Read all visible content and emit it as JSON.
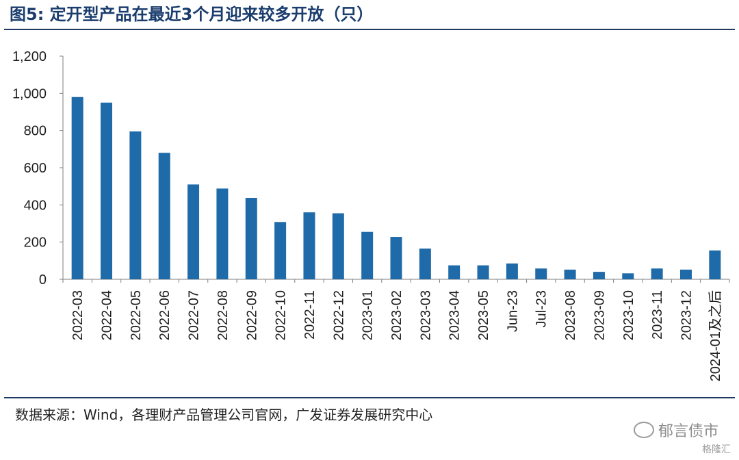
{
  "title": "图5:  定开型产品在最近3个月迎来较多开放（只）",
  "source": "数据来源：Wind，各理财产品管理公司官网，广发证券发展研究中心",
  "watermark": "郁言债市",
  "logo_text": "格隆汇",
  "chart_data": {
    "type": "bar",
    "categories": [
      "2022-03",
      "2022-04",
      "2022-05",
      "2022-06",
      "2022-07",
      "2022-08",
      "2022-09",
      "2022-10",
      "2022-11",
      "2022-12",
      "2023-01",
      "2023-02",
      "2023-03",
      "2023-04",
      "2023-05",
      "Jun-23",
      "Jul-23",
      "2023-08",
      "2023-09",
      "2023-10",
      "2023-11",
      "2023-12",
      "2024-01及之后"
    ],
    "values": [
      980,
      950,
      795,
      680,
      510,
      488,
      438,
      308,
      360,
      355,
      255,
      228,
      165,
      75,
      75,
      85,
      58,
      52,
      40,
      32,
      58,
      52,
      155
    ],
    "ylim": [
      0,
      1200
    ],
    "yticks": [
      0,
      200,
      400,
      600,
      800,
      1000,
      1200
    ],
    "ytick_labels": [
      "0",
      "200",
      "400",
      "600",
      "800",
      "1,000",
      "1,200"
    ],
    "bar_color": "#1f6aa8",
    "grid": false,
    "legend": "none"
  }
}
